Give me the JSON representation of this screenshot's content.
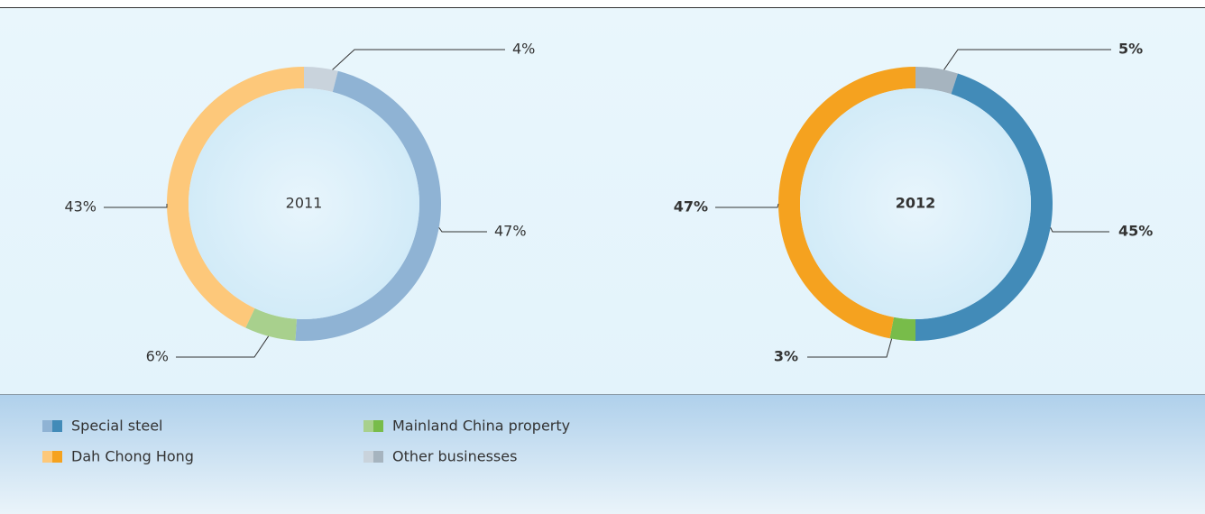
{
  "chart_data": [
    {
      "type": "donut",
      "title": "2011",
      "categories": [
        "Special steel",
        "Dah Chong Hong",
        "Mainland China property",
        "Other businesses"
      ],
      "values": [
        47,
        43,
        6,
        4
      ],
      "value_labels": [
        "47%",
        "43%",
        "6%",
        "4%"
      ],
      "colors": [
        "#8fb3d4",
        "#fdc87a",
        "#a8d08d",
        "#c9d3dc"
      ]
    },
    {
      "type": "donut",
      "title": "2012",
      "categories": [
        "Special steel",
        "Dah Chong Hong",
        "Mainland China property",
        "Other businesses"
      ],
      "values": [
        45,
        47,
        3,
        5
      ],
      "value_labels": [
        "45%",
        "47%",
        "3%",
        "5%"
      ],
      "colors": [
        "#428bb8",
        "#f5a21f",
        "#78bc4a",
        "#a6b4bf"
      ]
    }
  ]
}
